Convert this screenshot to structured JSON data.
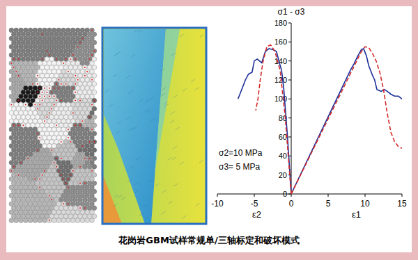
{
  "chart_data": {
    "type": "line",
    "title": "花岗岩GBM试样常规单/三轴标定和破坏模式",
    "ylabel": "σ1 - σ3",
    "xlabel_left": "ε2",
    "xlabel_right": "ε1",
    "annotations": [
      "σ2=10 MPa",
      "σ3= 5 MPa"
    ],
    "xlim": [
      -10,
      15
    ],
    "ylim": [
      0,
      180
    ],
    "xticks": [
      -10,
      -5,
      0,
      5,
      10,
      15
    ],
    "yticks": [
      0,
      20,
      40,
      60,
      80,
      100,
      120,
      140,
      160,
      180
    ],
    "grid": false,
    "series": [
      {
        "color": "#1c2f9a",
        "line_style": "solid",
        "x": [
          0,
          -0.5,
          -1,
          -1.3,
          -1.6,
          -2,
          -2.5,
          -3,
          -3.5,
          -4,
          -4.3,
          -4.6,
          -5,
          -5.3,
          -5.8,
          -6.2,
          -6.6,
          -7.2,
          null,
          0,
          8,
          8.5,
          9,
          9.5,
          9.8,
          10.2,
          10.5,
          11,
          11.3,
          11.6,
          12.2,
          12.6,
          13,
          13.5,
          14,
          14.5,
          15
        ],
        "values": [
          0,
          60,
          110,
          130,
          138,
          150,
          152,
          153,
          150,
          138,
          140,
          142,
          140,
          128,
          126,
          120,
          112,
          100,
          null,
          0,
          130,
          137,
          145,
          152,
          153,
          145,
          135,
          125,
          120,
          110,
          108,
          110,
          108,
          105,
          103,
          103,
          100
        ]
      },
      {
        "color": "#d42a2a",
        "line_style": "dashed",
        "x": [
          0,
          -0.8,
          -1.5,
          -2.2,
          -2.8,
          -3.3,
          -3.8,
          -4.2,
          -4.5,
          -4.8,
          null,
          0,
          9.5,
          10,
          10.5,
          11,
          11.5,
          12,
          12.5,
          13,
          13.5,
          14,
          14.5,
          15
        ],
        "values": [
          0,
          80,
          130,
          150,
          157,
          155,
          140,
          120,
          100,
          88,
          null,
          0,
          150,
          155,
          154,
          148,
          140,
          128,
          110,
          85,
          65,
          55,
          50,
          48
        ]
      }
    ]
  }
}
